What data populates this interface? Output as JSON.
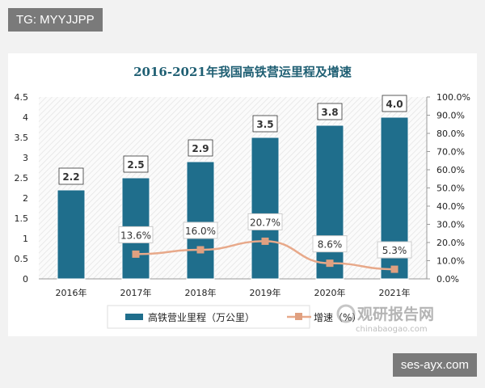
{
  "watermark_top": "TG: MYYJJPP",
  "watermark_bottom": "ses-ayx.com",
  "logo": {
    "name": "观研报告网",
    "domain": "chinabaogao.com"
  },
  "chart_data": {
    "type": "bar+line",
    "title": "2016-2021年我国高铁营运里程及增速",
    "categories": [
      "2016年",
      "2017年",
      "2018年",
      "2019年",
      "2020年",
      "2021年"
    ],
    "series": [
      {
        "name": "高铁营业里程（万公里）",
        "type": "bar",
        "axis": "left",
        "values": [
          2.2,
          2.5,
          2.9,
          3.5,
          3.8,
          4.0
        ],
        "labels": [
          "2.2",
          "2.5",
          "2.9",
          "3.5",
          "3.8",
          "4.0"
        ],
        "color": "#1f6e8c"
      },
      {
        "name": "增速（%）",
        "type": "line",
        "axis": "right",
        "values": [
          null,
          13.6,
          16.0,
          20.7,
          8.6,
          5.3
        ],
        "labels": [
          "",
          "13.6%",
          "16.0%",
          "20.7%",
          "8.6%",
          "5.3%"
        ],
        "color": "#e8a98a"
      }
    ],
    "yleft": {
      "ylim": [
        0,
        4.5
      ],
      "ticks": [
        "0",
        "0.5",
        "1",
        "1.5",
        "2",
        "2.5",
        "3",
        "3.5",
        "4",
        "4.5"
      ]
    },
    "yright": {
      "ylim": [
        0,
        100
      ],
      "ticks": [
        "0.0%",
        "10.0%",
        "20.0%",
        "30.0%",
        "40.0%",
        "50.0%",
        "60.0%",
        "70.0%",
        "80.0%",
        "90.0%",
        "100.0%"
      ]
    },
    "legend": "bottom",
    "title_color": "#1f5f73"
  }
}
